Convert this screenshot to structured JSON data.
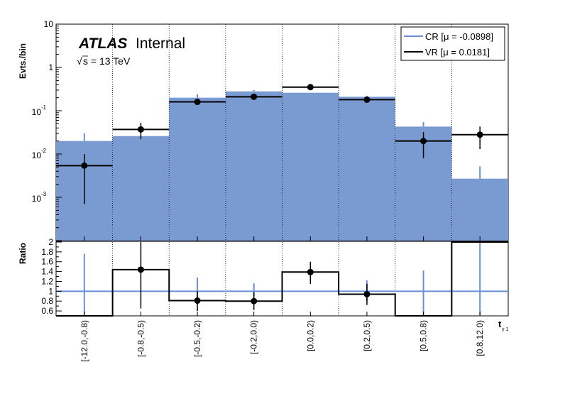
{
  "chart_data": {
    "type": "histogram",
    "logo": "ATLAS",
    "status": "Internal",
    "energy_label": "s = 13 TeV",
    "sqrt_symbol": "√",
    "upper": {
      "ylabel": "Evts./bin",
      "yscale": "log",
      "ylim": [
        0.0001,
        10
      ],
      "y_tick_labels": [
        {
          "v": 10,
          "text": "10"
        },
        {
          "v": 1,
          "text": "1"
        },
        {
          "v": 0.1,
          "mant": "10",
          "exp": "-1"
        },
        {
          "v": 0.01,
          "mant": "10",
          "exp": "-2"
        },
        {
          "v": 0.001,
          "mant": "10",
          "exp": "-3"
        }
      ]
    },
    "ratio": {
      "ylabel": "Ratio",
      "ylim": [
        0.5,
        2.0
      ],
      "y_tick_labels": [
        "2",
        "1.8",
        "1.6",
        "1.4",
        "1.2",
        "1",
        "0.8",
        "0.6"
      ],
      "reference_line": 1.0
    },
    "xlabel": "t",
    "xlabel_sub": "γ 1",
    "categories": [
      "[-12.0,-0.8)",
      "[-0.8,-0.5)",
      "[-0.5,-0.2)",
      "[-0.2,0.0)",
      "[0.0,0.2)",
      "[0.2,0.5)",
      "[0.5,0.8)",
      "[0.8,12.0)"
    ],
    "legend": {
      "position": "top-right",
      "cr_label": "CR [μ = -0.0898]",
      "vr_label": "VR [μ = 0.0181]"
    },
    "series": [
      {
        "name": "CR [μ = -0.0898]",
        "style": "filled-histogram",
        "color": "#7a9ad2",
        "error_color": "#6a8fd8",
        "values": [
          0.02,
          0.026,
          0.2,
          0.28,
          0.26,
          0.21,
          0.043,
          0.0027
        ],
        "err_up": [
          0.03,
          null,
          0.24,
          0.3,
          null,
          0.22,
          0.055,
          0.0052
        ],
        "err_low": [
          null,
          null,
          null,
          null,
          null,
          null,
          null,
          null
        ]
      },
      {
        "name": "VR [μ = 0.0181]",
        "style": "points-with-errors",
        "color": "#000000",
        "values": [
          0.0054,
          0.037,
          0.16,
          0.21,
          0.35,
          0.18,
          0.02,
          0.028
        ],
        "err_up": [
          0.01,
          0.053,
          0.18,
          0.23,
          0.38,
          0.2,
          0.032,
          0.043
        ],
        "err_low": [
          0.0007,
          0.022,
          0.14,
          0.19,
          0.32,
          0.16,
          0.008,
          0.013
        ]
      }
    ],
    "ratio_series": {
      "values": [
        0.47,
        1.44,
        0.81,
        0.8,
        1.39,
        0.94,
        0.46,
        2.0
      ],
      "err_up": [
        null,
        2.0,
        1.0,
        0.98,
        1.6,
        1.15,
        null,
        null
      ],
      "err_low": [
        null,
        0.65,
        0.6,
        0.62,
        1.15,
        0.72,
        null,
        null
      ],
      "cr_err_up": [
        1.76,
        null,
        1.28,
        1.16,
        null,
        1.22,
        1.42,
        2.0
      ],
      "cr_err_low": [
        0.5,
        0.6,
        0.8,
        0.9,
        0.85,
        0.8,
        0.5,
        0.5
      ],
      "marker_bins": [
        1,
        2,
        3,
        4,
        5
      ]
    },
    "grid": "vertical-dotted-at-bin-edges"
  }
}
